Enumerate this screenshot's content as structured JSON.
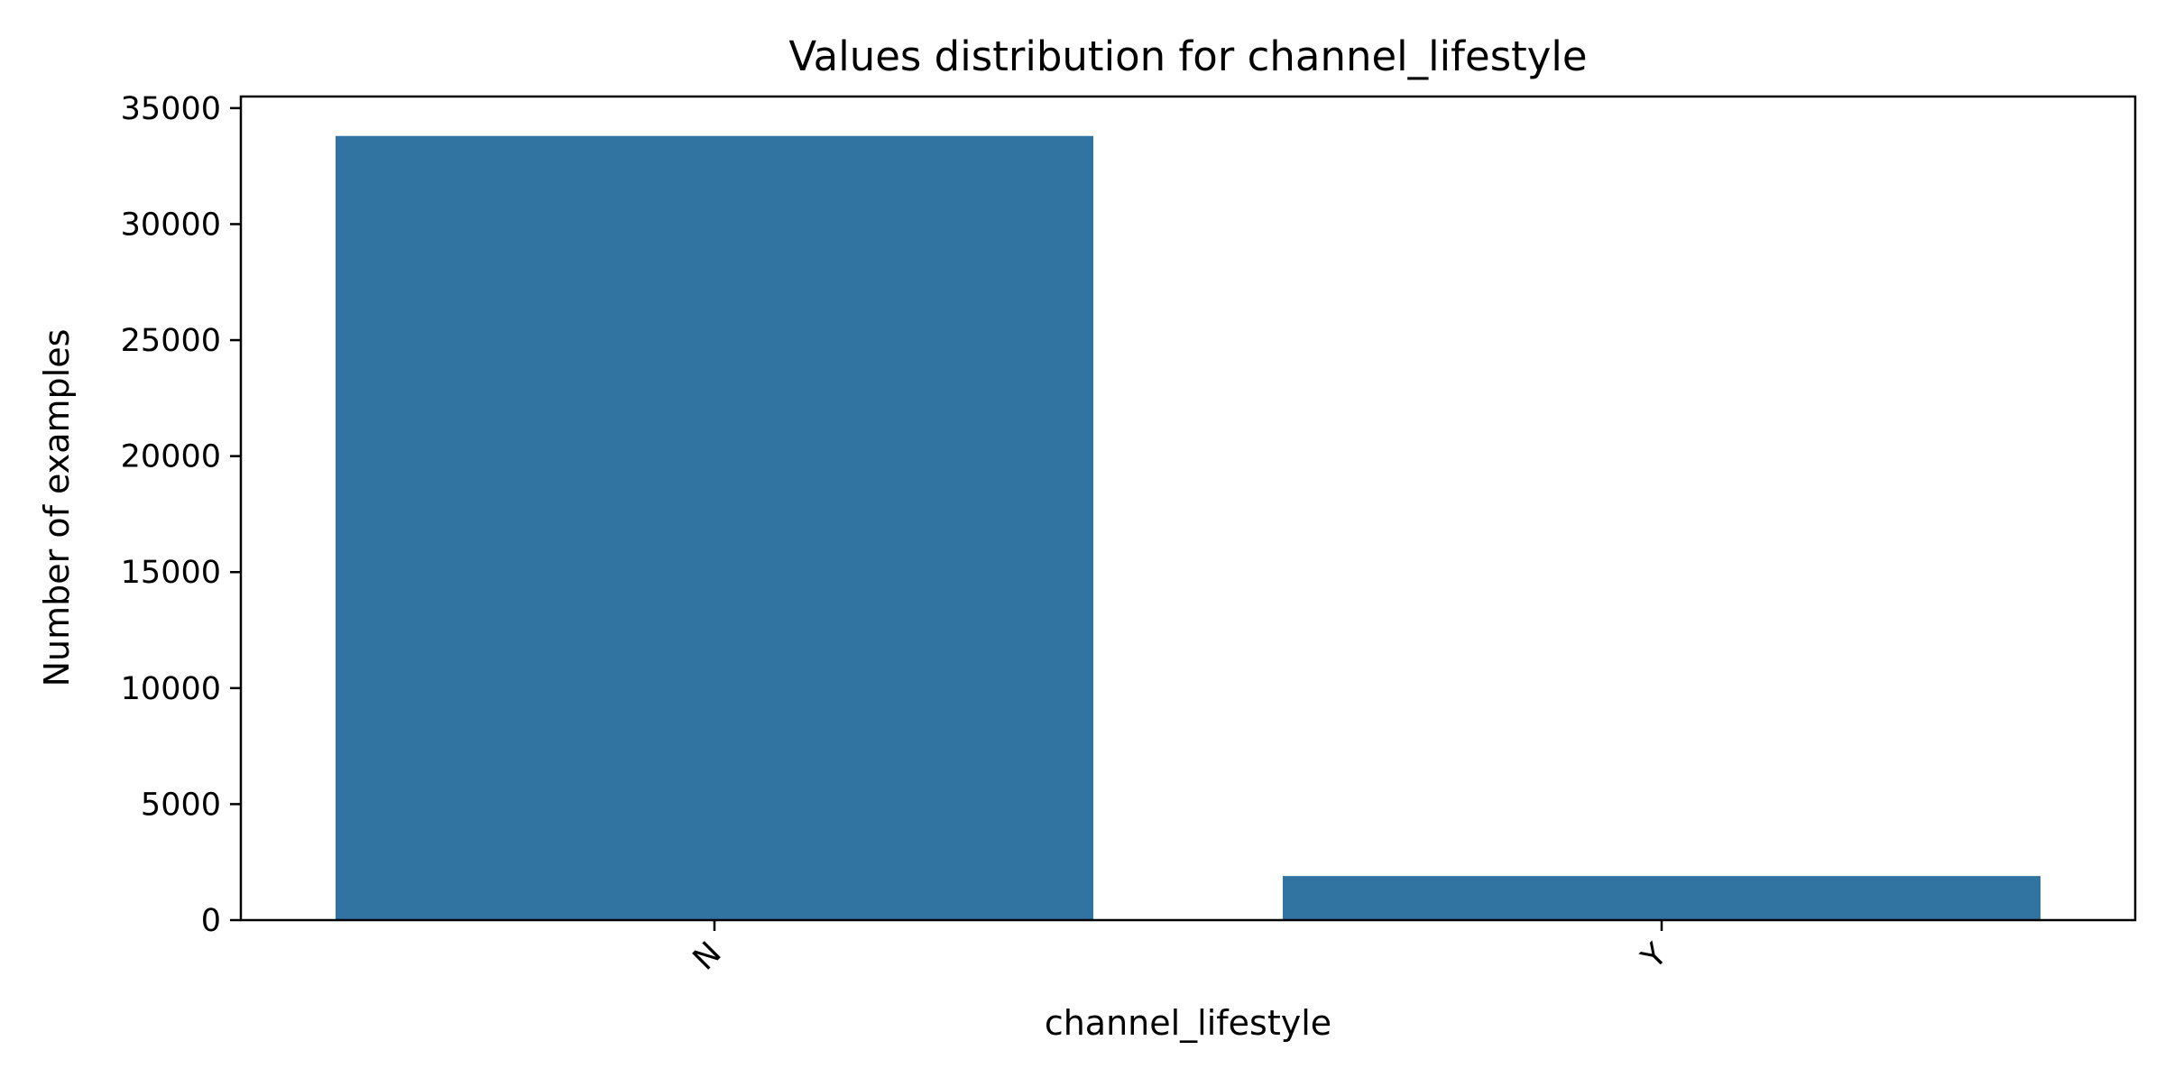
{
  "chart_data": {
    "type": "bar",
    "title": "Values distribution for channel_lifestyle",
    "xlabel": "channel_lifestyle",
    "ylabel": "Number of examples",
    "categories": [
      "N",
      "Y"
    ],
    "values": [
      33800,
      1900
    ],
    "ylim": [
      0,
      35500
    ],
    "yticks": [
      0,
      5000,
      10000,
      15000,
      20000,
      25000,
      30000,
      35000
    ],
    "ytick_labels": [
      "0",
      "5000",
      "10000",
      "15000",
      "20000",
      "25000",
      "30000",
      "35000"
    ],
    "bar_color": "#3274a1",
    "grid": false,
    "legend": "none"
  }
}
